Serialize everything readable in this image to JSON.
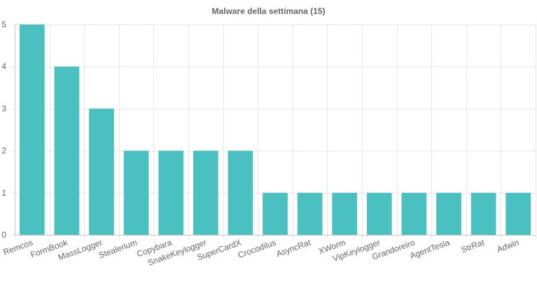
{
  "chart_data": {
    "type": "bar",
    "title": "Malware della settimana (15)",
    "xlabel": "",
    "ylabel": "",
    "categories": [
      "Remcos",
      "FormBook",
      "MassLogger",
      "Stealerium",
      "Copybara",
      "SnakeKeylogger",
      "SuperCardX",
      "Crocodilus",
      "AsyncRat",
      "XWorm",
      "VipKeylogger",
      "Grandoreiro",
      "AgentTesla",
      "StrRat",
      "Adwin"
    ],
    "values": [
      5,
      4,
      3,
      2,
      2,
      2,
      2,
      1,
      1,
      1,
      1,
      1,
      1,
      1,
      1
    ],
    "ylim": [
      0,
      5
    ],
    "yticks": [
      0,
      1,
      2,
      3,
      4,
      5
    ],
    "grid": true,
    "legend": "none",
    "bar_color": "#4bc0c0"
  }
}
